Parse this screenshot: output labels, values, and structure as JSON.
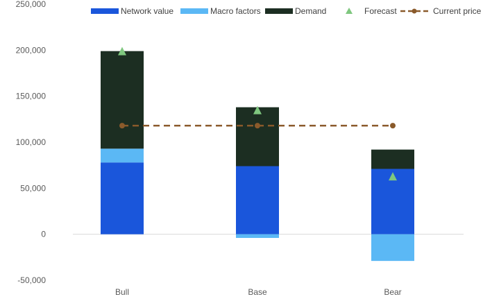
{
  "chart_data": {
    "type": "bar",
    "stacked": true,
    "categories": [
      "Bull",
      "Base",
      "Bear"
    ],
    "series": [
      {
        "name": "Network value",
        "kind": "bar",
        "color": "#1a56db",
        "values": [
          78000,
          74000,
          71000
        ]
      },
      {
        "name": "Macro factors",
        "kind": "bar",
        "color": "#5bb8f5",
        "values": [
          15000,
          -4000,
          -29000
        ]
      },
      {
        "name": "Demand",
        "kind": "bar",
        "color": "#1c2e22",
        "values": [
          106000,
          64000,
          21000
        ]
      },
      {
        "name": "Forecast",
        "kind": "marker",
        "color": "#7fc77f",
        "values": [
          199000,
          135000,
          63000
        ]
      },
      {
        "name": "Current price",
        "kind": "line",
        "color": "#8a5a2b",
        "values": [
          118000,
          118000,
          118000
        ]
      }
    ],
    "yticks": [
      "250,000",
      "200,000",
      "150,000",
      "100,000",
      "50,000",
      "0",
      "-50,000"
    ],
    "ylim": [
      -50000,
      250000
    ],
    "grid": false,
    "legend": "top"
  }
}
